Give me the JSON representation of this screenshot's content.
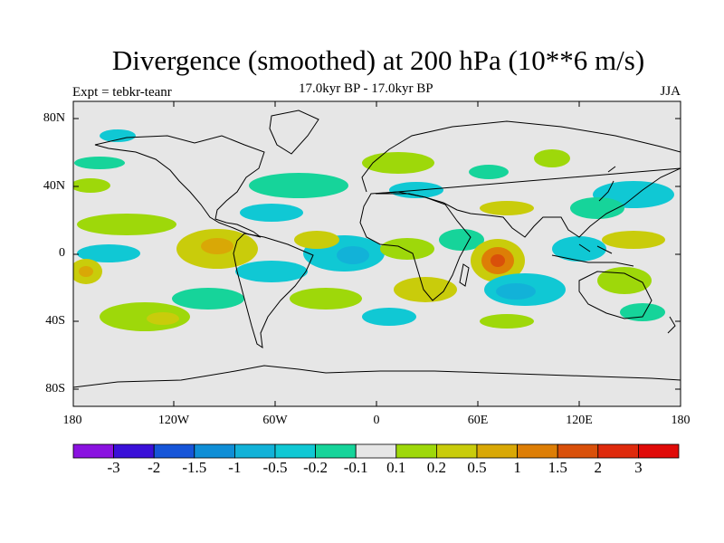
{
  "title": "Divergence (smoothed) at 200 hPa (10**6 m/s)",
  "subtitle": "17.0kyr BP - 17.0kyr BP",
  "expt": "Expt = tebkr-teanr",
  "season": "JJA",
  "lat_labels": [
    "80N",
    "40N",
    "0",
    "40S",
    "80S"
  ],
  "lon_labels": [
    "180",
    "120W",
    "60W",
    "0",
    "60E",
    "120E",
    "180"
  ],
  "colorbar": {
    "labels": [
      "-3",
      "-2",
      "-1.5",
      "-1",
      "-0.5",
      "-0.2",
      "-0.1",
      "0.1",
      "0.2",
      "0.5",
      "1",
      "1.5",
      "2",
      "3"
    ],
    "colors": [
      "#8a12e0",
      "#3a10d8",
      "#1655d8",
      "#0f8ed6",
      "#12b2d8",
      "#10c8d4",
      "#16d49a",
      "#e6e6e6",
      "#9ed80a",
      "#c9cc0b",
      "#d9a806",
      "#dd7e06",
      "#d9500a",
      "#df2a0c",
      "#e00a08"
    ]
  },
  "colors": {
    "background": "#e6e6e6",
    "coast": "#000000"
  }
}
